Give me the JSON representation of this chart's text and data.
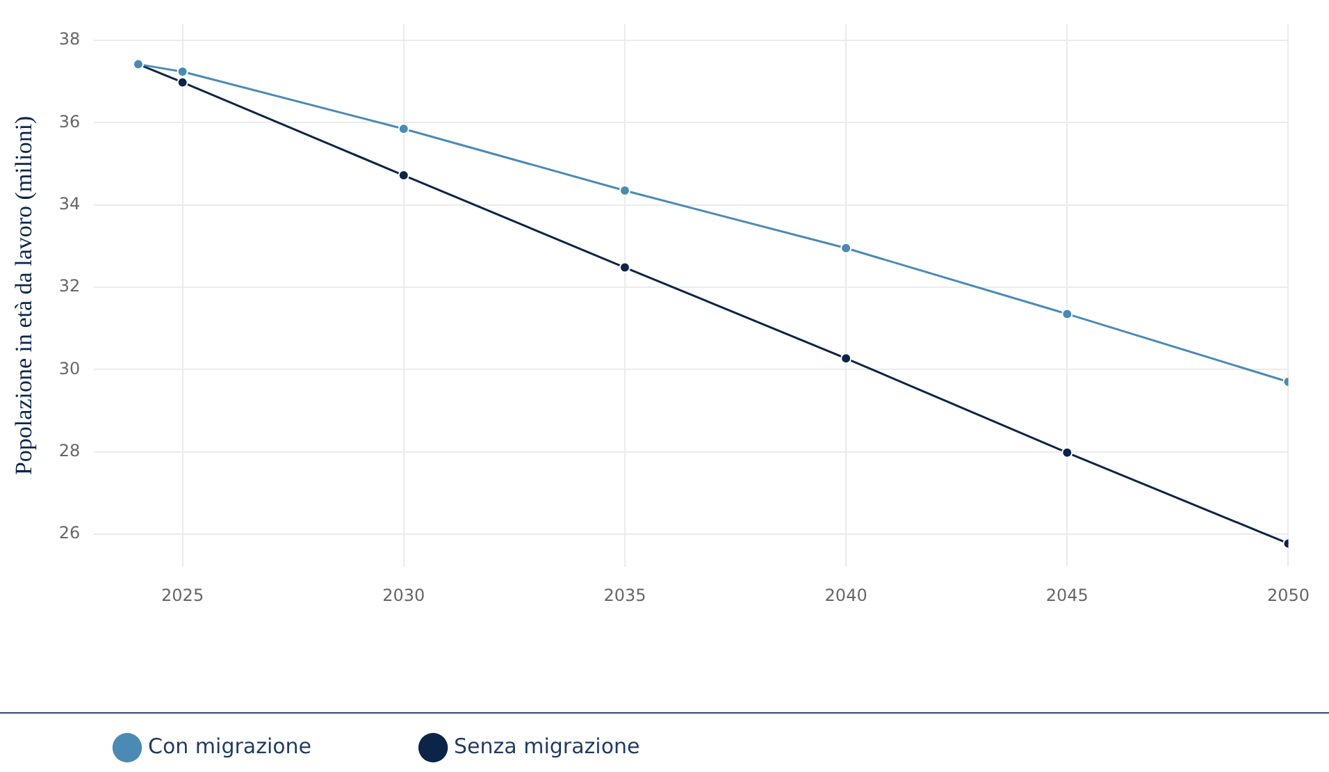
{
  "chart_data": {
    "type": "line",
    "ylabel": "Popolazione in età da lavoro (milioni)",
    "x": [
      2024,
      2025,
      2030,
      2035,
      2040,
      2045,
      2050
    ],
    "series": [
      {
        "name": "Con migrazione",
        "color": "#4a8ab5",
        "values": [
          37.42,
          37.24,
          35.85,
          34.35,
          32.95,
          31.35,
          29.7
        ]
      },
      {
        "name": "Senza migrazione",
        "color": "#0b2447",
        "values": [
          37.42,
          36.98,
          34.72,
          32.48,
          30.27,
          27.98,
          25.77
        ]
      }
    ],
    "xlim": [
      2023,
      2050
    ],
    "xticks": [
      2025,
      2030,
      2035,
      2040,
      2045,
      2050
    ],
    "ylim": [
      25.2,
      38.4
    ],
    "yticks": [
      26,
      28,
      30,
      32,
      34,
      36,
      38
    ],
    "grid": true,
    "legend": "bottom left",
    "marker": "circle",
    "line_style": "solid"
  }
}
